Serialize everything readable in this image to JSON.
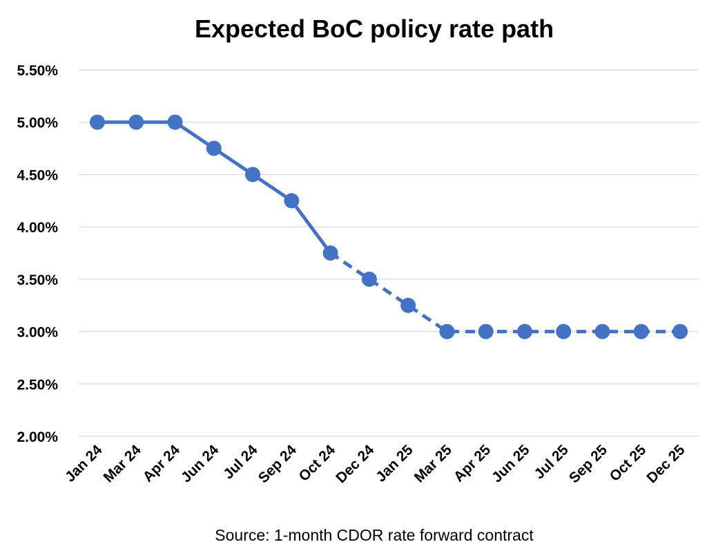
{
  "chart_data": {
    "type": "line",
    "title": "Expected BoC policy rate path",
    "source": "Source: 1-month CDOR rate forward contract",
    "categories": [
      "Jan 24",
      "Mar 24",
      "Apr 24",
      "Jun 24",
      "Jul 24",
      "Sep 24",
      "Oct 24",
      "Dec 24",
      "Jan 25",
      "Mar 25",
      "Apr 25",
      "Jun 25",
      "Jul 25",
      "Sep 25",
      "Oct 25",
      "Dec 25"
    ],
    "values": [
      5.0,
      5.0,
      5.0,
      4.75,
      4.5,
      4.25,
      3.75,
      3.5,
      3.25,
      3.0,
      3.0,
      3.0,
      3.0,
      3.0,
      3.0,
      3.0
    ],
    "solid_through_index": 6,
    "ylim": [
      2.0,
      5.5
    ],
    "yticks": [
      "2.00%",
      "2.50%",
      "3.00%",
      "3.50%",
      "4.00%",
      "4.50%",
      "5.00%",
      "5.50%"
    ],
    "ytick_values": [
      2.0,
      2.5,
      3.0,
      3.5,
      4.0,
      4.5,
      5.0,
      5.5
    ],
    "grid": true,
    "legend": "none",
    "color": "#4472c4"
  }
}
